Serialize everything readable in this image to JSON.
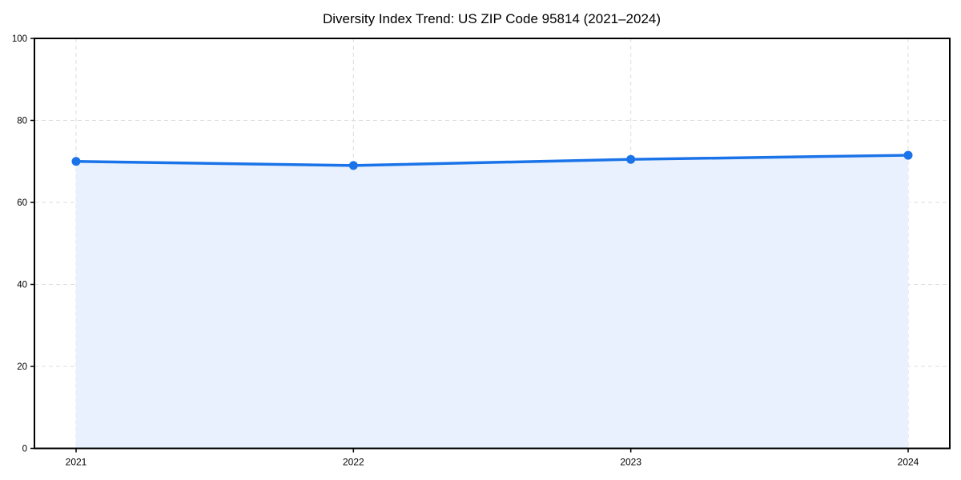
{
  "chart_data": {
    "type": "area",
    "title": "Diversity Index Trend: US ZIP Code 95814 (2021–2024)",
    "categories": [
      "2021",
      "2022",
      "2023",
      "2024"
    ],
    "series": [
      {
        "name": "Diversity Index",
        "values": [
          70,
          69,
          70.5,
          71.5
        ]
      }
    ],
    "xlabel": "",
    "ylabel": "",
    "ylim": [
      0,
      100
    ],
    "yticks": [
      0,
      20,
      40,
      60,
      80,
      100
    ],
    "grid": true,
    "legend_position": "none",
    "colors": {
      "line": "#1a73e8",
      "marker": "#1a73e8",
      "area_fill": "#e8f1fd",
      "gridline": "#dcdcdc",
      "axis_frame": "#000000",
      "background": "#ffffff",
      "text": "#000000"
    }
  }
}
